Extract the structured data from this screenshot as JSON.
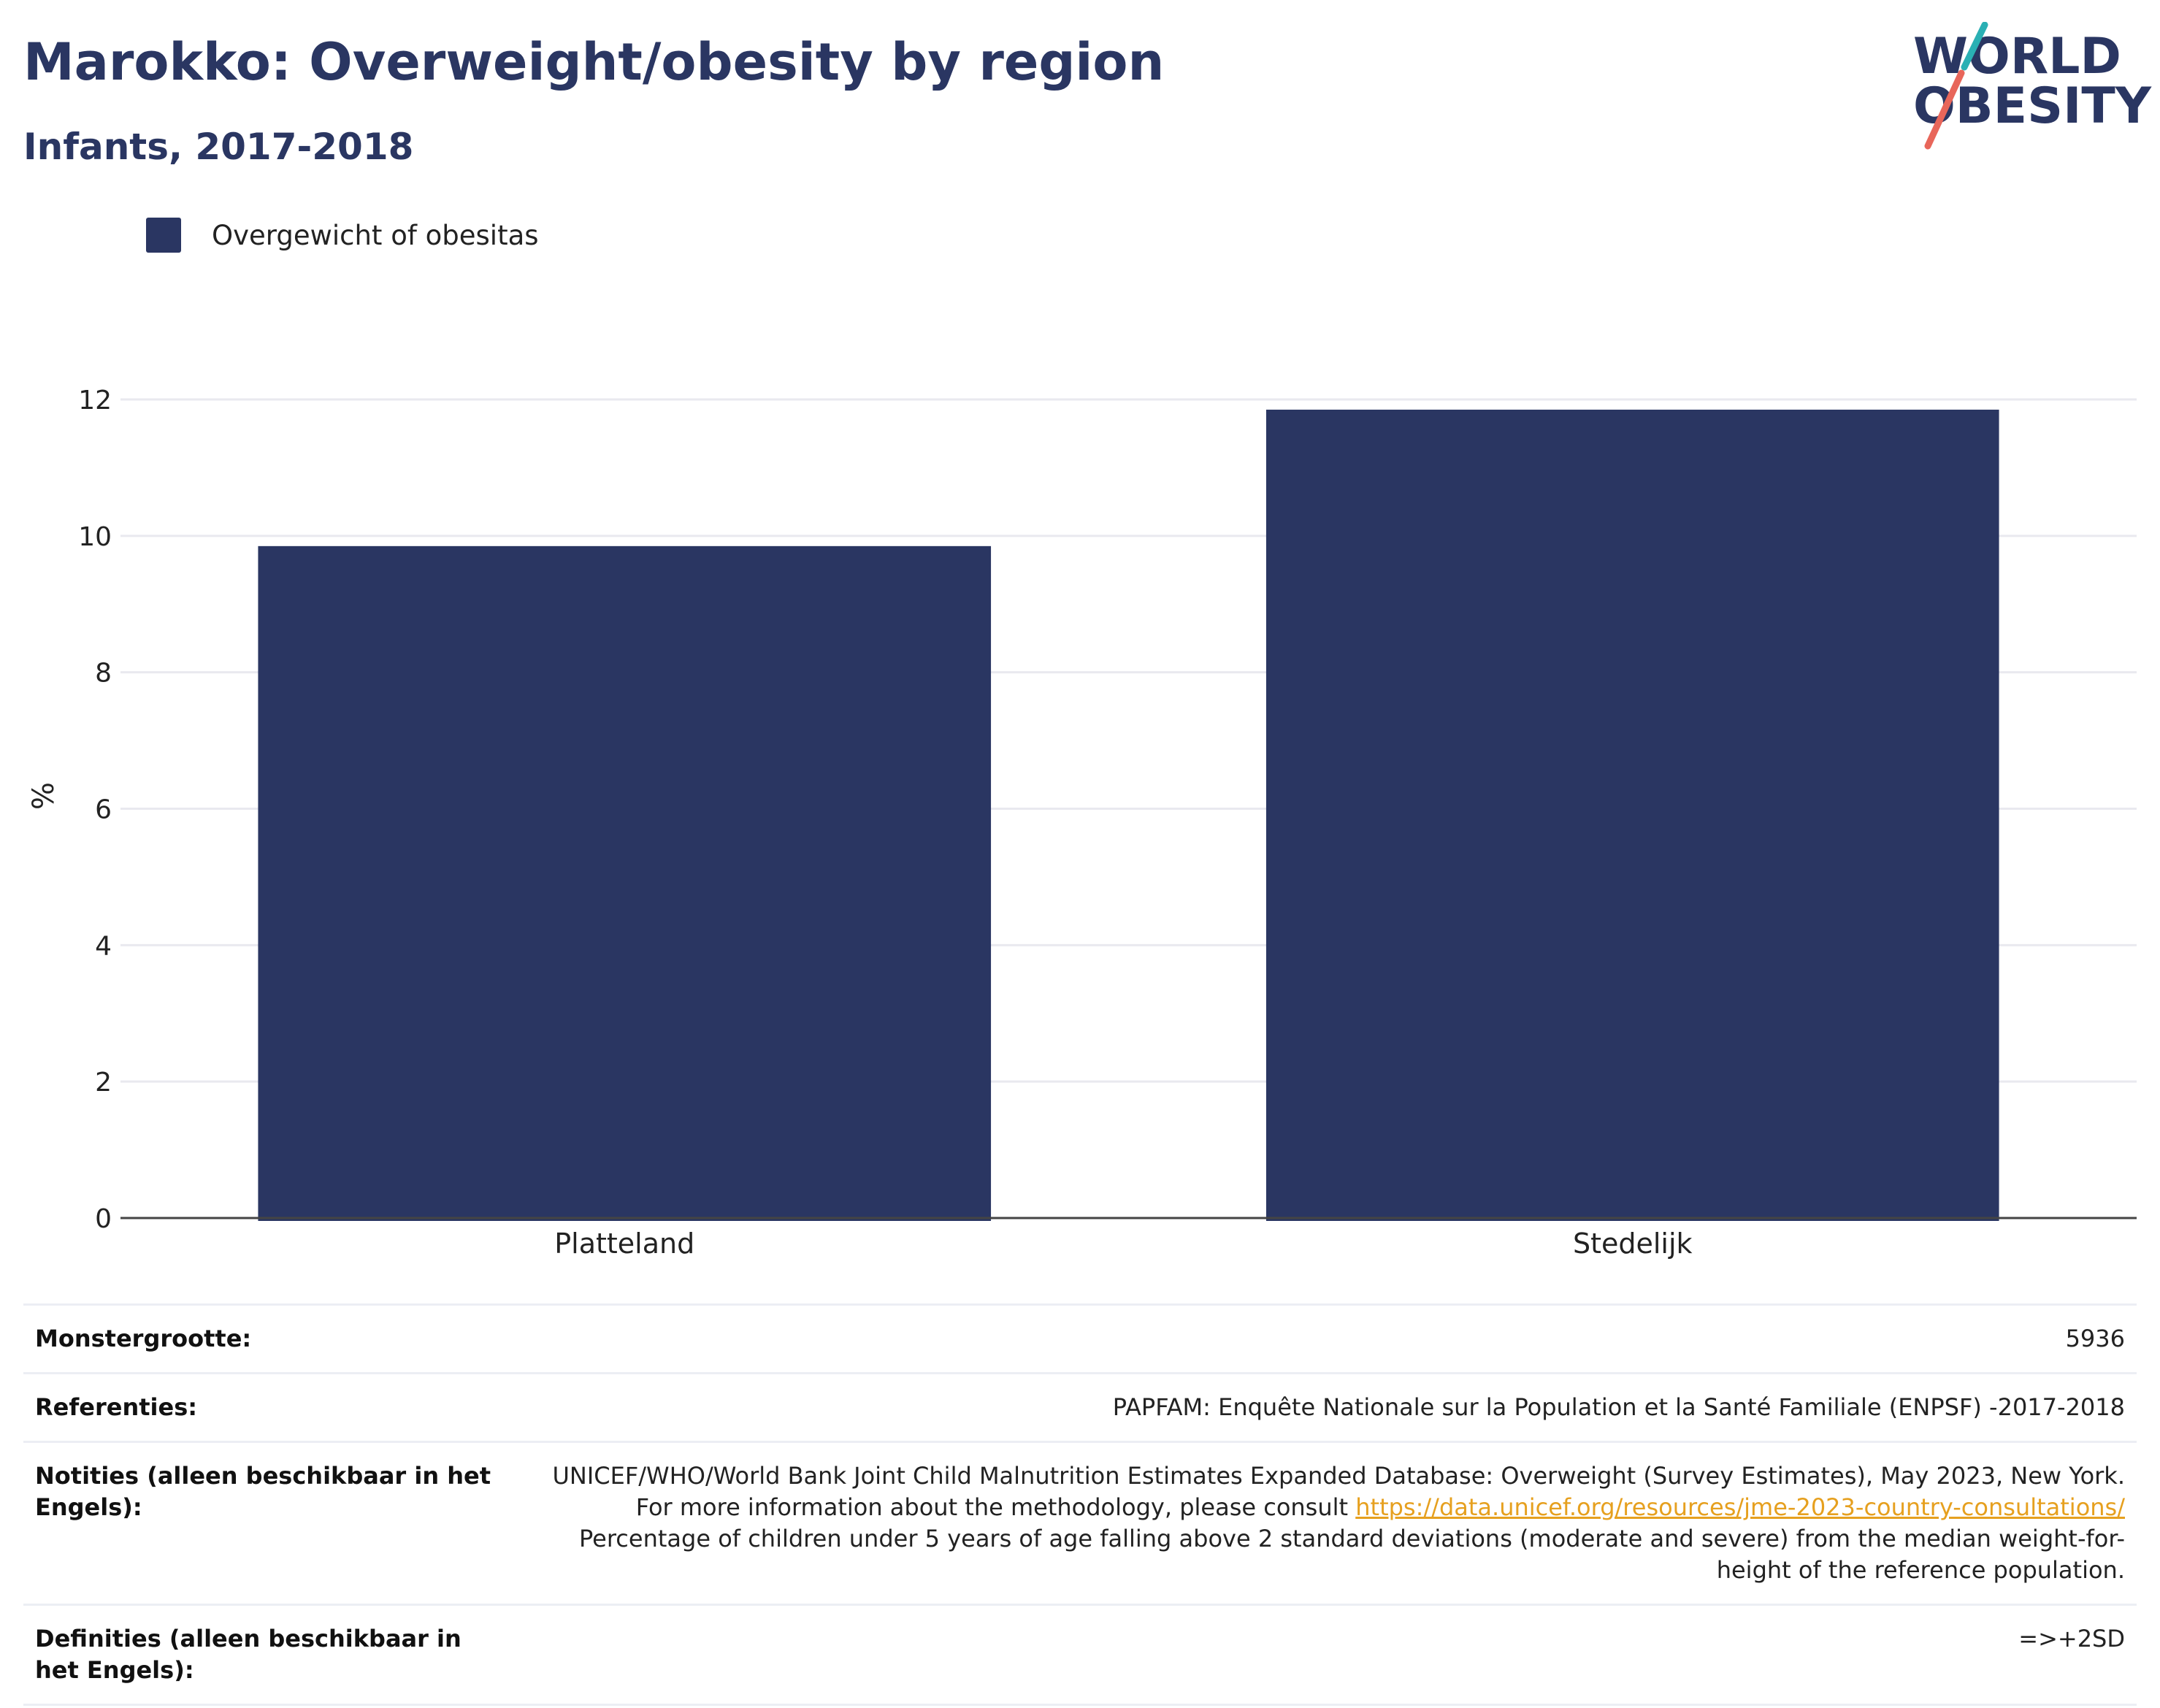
{
  "header": {
    "title": "Marokko: Overweight/obesity by region",
    "subtitle": "Infants, 2017-2018"
  },
  "logo": {
    "line1": "WORLD",
    "line2": "OBESITY"
  },
  "colors": {
    "bar": "#2a3662",
    "heading": "#2a3662",
    "link": "#e6a01f",
    "logo_teal": "#2ab0b4",
    "logo_coral": "#e8665a"
  },
  "chart_data": {
    "type": "bar",
    "categories": [
      "Platteland",
      "Stedelijk"
    ],
    "series": [
      {
        "name": "Overgewicht of obesitas",
        "values": [
          9.85,
          11.85
        ]
      }
    ],
    "ylabel": "%",
    "ylim": [
      0,
      12
    ],
    "yticks": [
      0,
      2,
      4,
      6,
      8,
      10,
      12
    ],
    "grid": true,
    "legend_position": "top-left"
  },
  "info": {
    "rows": [
      {
        "key": "Monstergrootte:",
        "value": "5936"
      },
      {
        "key": "Referenties:",
        "value": "PAPFAM: Enquête Nationale sur la Population et la Santé Familiale (ENPSF) -2017-2018"
      },
      {
        "key": "Notities (alleen beschikbaar in het Engels):",
        "value": "UNICEF/WHO/World Bank Joint Child Malnutrition Estimates Expanded Database: Overweight (Survey Estimates), May 2023, New York. For more information about the methodology, please consult",
        "link": "https://data.unicef.org/resources/jme-2023-country-consultations/",
        "value_after": "Percentage of children under 5 years of age falling above 2 standard deviations (moderate and severe) from the median weight-for-height of the reference population."
      },
      {
        "key": "Definities (alleen beschikbaar in het Engels):",
        "value": "=>+2SD"
      }
    ]
  }
}
